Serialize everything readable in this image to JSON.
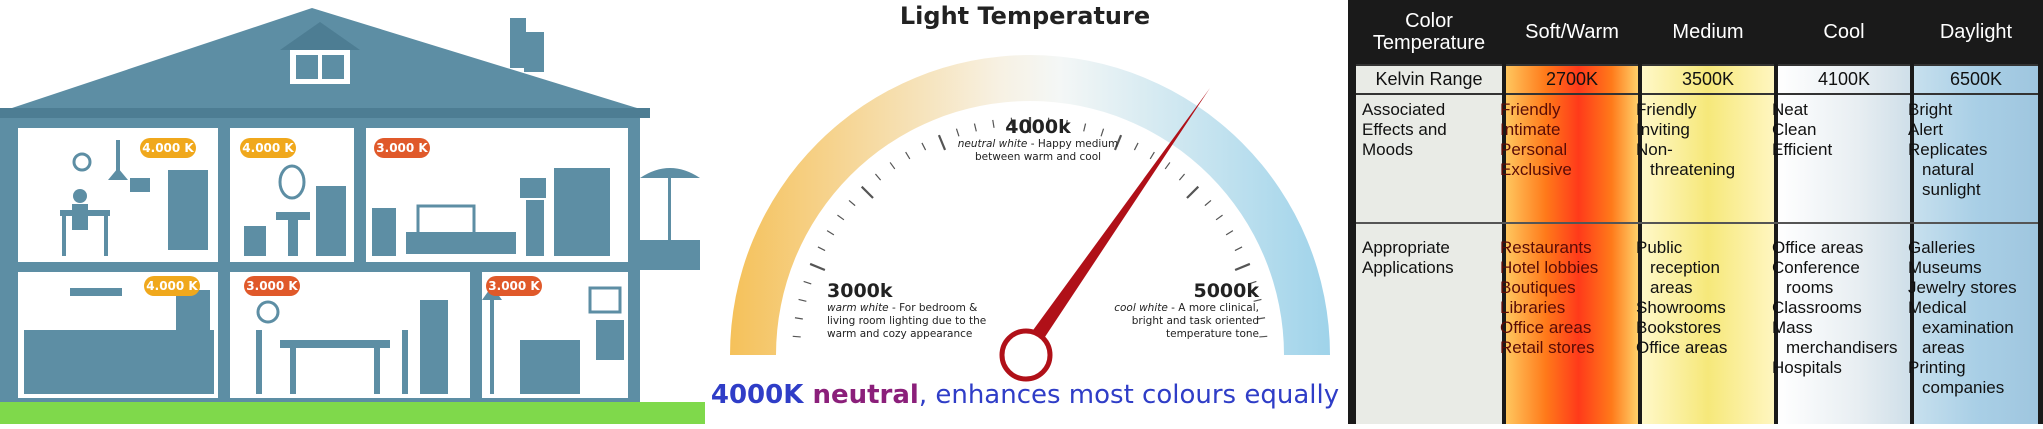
{
  "house": {
    "badges": [
      "4.000 K",
      "4.000 K",
      "3.000 K",
      "4.000 K",
      "3.000 K",
      "3.000 K"
    ],
    "colors": {
      "building": "#5d8ea4",
      "warm_badge": "#f0a81c",
      "hot_badge": "#e0592a",
      "grass": "#7fd94b"
    }
  },
  "gauge": {
    "title": "Light Temperature",
    "warm": {
      "value": "3000k",
      "mode": "warm white",
      "desc": " - For bedroom & living room lighting due to the warm and cozy appearance"
    },
    "neutral": {
      "value": "4000k",
      "mode": "neutral white",
      "desc": " - Happy medium between warm and cool"
    },
    "cool": {
      "value": "5000k",
      "mode": "cool white",
      "desc": " - A more clinical, bright and task oriented temperature tone"
    },
    "caption": {
      "part1": "4000K ",
      "part2": "neutral",
      "part3": ", enhances most colours equally"
    },
    "colors": {
      "warm": "#f5c15a",
      "neutral": "#f7f1e3",
      "cool": "#9fd3ea",
      "needle": "#b01018"
    }
  },
  "table": {
    "corner": "Color Temperature",
    "kelvin_label": "Kelvin Range",
    "effects_label": "Associated Effects and Moods",
    "applications_label": "Appropriate Applications",
    "columns": [
      {
        "name": "Soft/Warm",
        "kelvin": "2700K",
        "effects": [
          "Friendly",
          "Intimate",
          "Personal",
          "Exclusive"
        ],
        "applications": [
          "Restaurants",
          "Hotel lobbies",
          "Boutiques",
          "Libraries",
          "Office areas",
          "Retail stores"
        ]
      },
      {
        "name": "Medium",
        "kelvin": "3500K",
        "effects": [
          "Friendly",
          "Inviting",
          "Non-",
          "threatening"
        ],
        "applications": [
          "Public",
          "reception",
          "areas",
          "Showrooms",
          "Bookstores",
          "Office areas"
        ]
      },
      {
        "name": "Cool",
        "kelvin": "4100K",
        "effects": [
          "Neat",
          "Clean",
          "Efficient"
        ],
        "applications": [
          "Office areas",
          "Conference",
          "rooms",
          "Classrooms",
          "Mass",
          "merchandisers",
          "Hospitals"
        ]
      },
      {
        "name": "Daylight",
        "kelvin": "6500K",
        "effects": [
          "Bright",
          "Alert",
          "Replicates",
          "natural",
          "sunlight"
        ],
        "applications": [
          "Galleries",
          "Museums",
          "Jewelry stores",
          "Medical",
          "examination",
          "areas",
          "Printing",
          "companies"
        ]
      }
    ],
    "colors": {
      "header": "#1a1a1a",
      "warm": "#ff8a1c",
      "medium": "#f6e87a",
      "cool": "#e8eef2",
      "daylight": "#a9cfe6",
      "label": "#e9ebe6"
    }
  }
}
